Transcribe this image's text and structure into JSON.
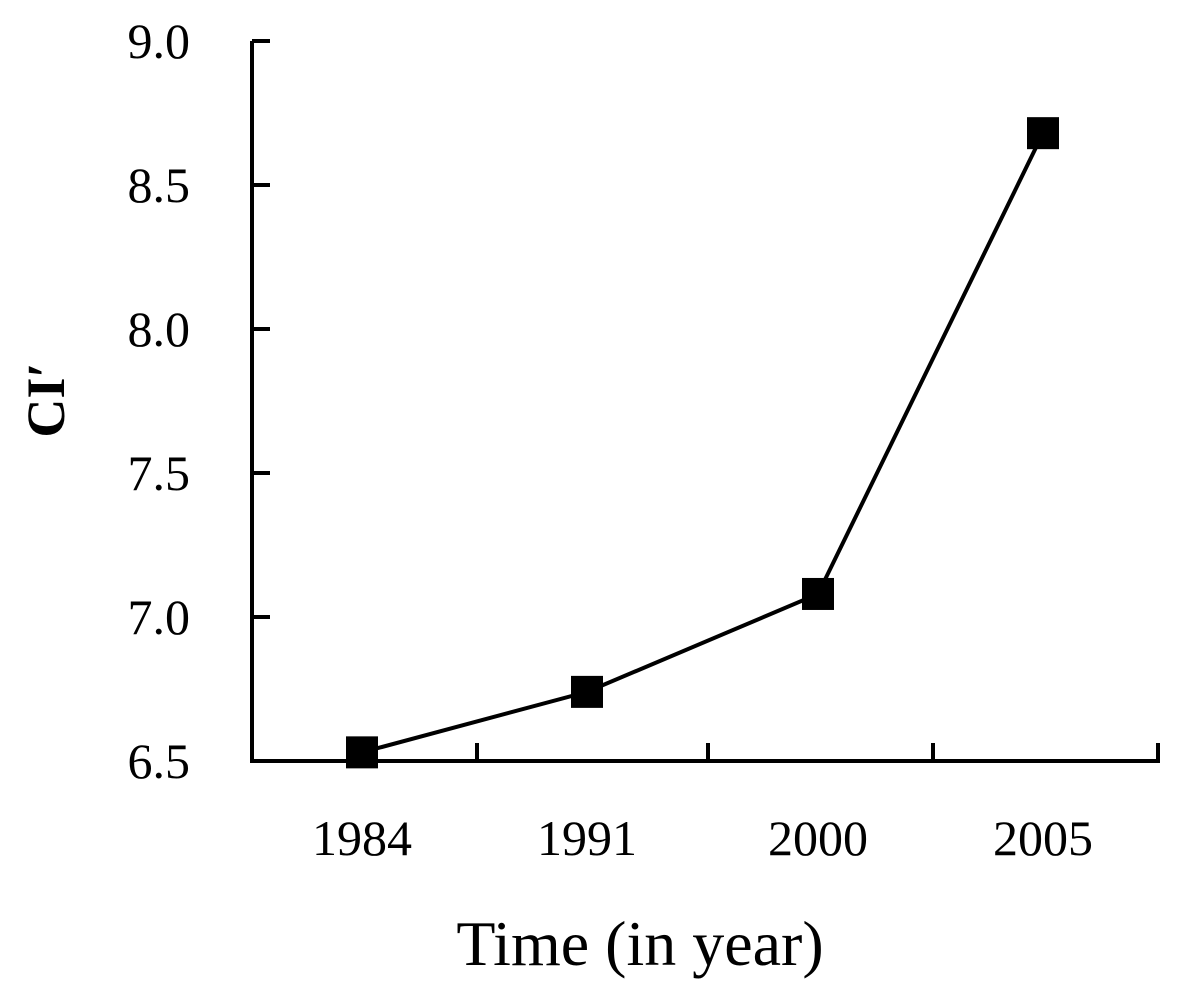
{
  "chart_data": {
    "type": "line",
    "categories": [
      "1984",
      "1991",
      "2000",
      "2005"
    ],
    "series": [
      {
        "values": [
          6.53,
          6.74,
          7.08,
          8.68
        ],
        "marker": "square",
        "color": "#000000"
      }
    ],
    "xlabel": "Time (in year)",
    "ylabel": "CI′",
    "ylim": [
      6.5,
      9.0
    ],
    "yticks": [
      "6.5",
      "7.0",
      "7.5",
      "8.0",
      "8.5",
      "9.0"
    ],
    "grid": false,
    "legend": "none"
  }
}
